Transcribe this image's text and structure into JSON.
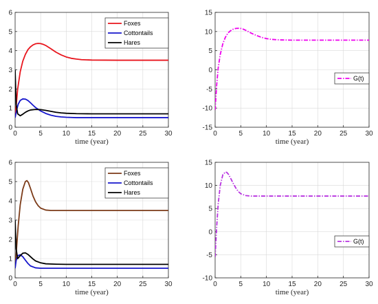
{
  "chart_data": [
    {
      "type": "line",
      "xlabel": "time (year)",
      "ylabel": "",
      "xlim": [
        0,
        30
      ],
      "ylim": [
        0,
        6
      ],
      "xticks": [
        0,
        5,
        10,
        15,
        20,
        25,
        30
      ],
      "yticks": [
        0,
        1,
        2,
        3,
        4,
        5,
        6
      ],
      "grid": true,
      "legend_position": "top-right",
      "series": [
        {
          "name": "Foxes",
          "color": "#e8141c",
          "dash": "solid",
          "x": [
            0,
            0.5,
            1,
            1.5,
            2,
            2.5,
            3,
            3.5,
            4,
            4.5,
            5,
            5.5,
            6,
            7,
            8,
            9,
            10,
            11,
            12,
            13,
            15,
            20,
            25,
            30
          ],
          "y": [
            0.5,
            2.0,
            2.9,
            3.45,
            3.8,
            4.05,
            4.2,
            4.3,
            4.36,
            4.38,
            4.37,
            4.33,
            4.27,
            4.1,
            3.92,
            3.78,
            3.67,
            3.6,
            3.56,
            3.53,
            3.51,
            3.5,
            3.5,
            3.5
          ]
        },
        {
          "name": "Cottontails",
          "color": "#1515cc",
          "dash": "solid",
          "x": [
            0,
            0.3,
            0.6,
            1,
            1.5,
            2,
            2.5,
            3,
            3.5,
            4,
            5,
            6,
            7,
            8,
            9,
            10,
            12,
            15,
            20,
            25,
            30
          ],
          "y": [
            0.5,
            0.9,
            1.2,
            1.4,
            1.48,
            1.47,
            1.4,
            1.28,
            1.15,
            1.03,
            0.85,
            0.72,
            0.63,
            0.57,
            0.54,
            0.52,
            0.5,
            0.5,
            0.5,
            0.5,
            0.5
          ]
        },
        {
          "name": "Hares",
          "color": "#000000",
          "dash": "solid",
          "x": [
            0,
            0.2,
            0.5,
            1,
            1.5,
            2,
            2.5,
            3,
            4,
            5,
            6,
            7,
            8,
            9,
            10,
            12,
            15,
            20,
            25,
            30
          ],
          "y": [
            3.0,
            1.2,
            0.7,
            0.6,
            0.68,
            0.78,
            0.85,
            0.9,
            0.93,
            0.92,
            0.88,
            0.83,
            0.78,
            0.75,
            0.73,
            0.71,
            0.7,
            0.7,
            0.7,
            0.7
          ]
        }
      ]
    },
    {
      "type": "line",
      "xlabel": "time (year)",
      "ylabel": "",
      "xlim": [
        0,
        30
      ],
      "ylim": [
        -15,
        15
      ],
      "xticks": [
        0,
        5,
        10,
        15,
        20,
        25,
        30
      ],
      "yticks": [
        -15,
        -10,
        -5,
        0,
        5,
        10,
        15
      ],
      "grid": true,
      "legend_position": "center-right",
      "series": [
        {
          "name": "G(t)",
          "color": "#ee00ee",
          "dash": "dashdot",
          "x": [
            0,
            0.3,
            0.6,
            1,
            1.5,
            2,
            2.5,
            3,
            3.5,
            4,
            4.5,
            5,
            5.5,
            6,
            7,
            8,
            9,
            10,
            11,
            12,
            13,
            15,
            20,
            25,
            30
          ],
          "y": [
            -10.5,
            -4.0,
            0.5,
            4.0,
            6.8,
            8.5,
            9.6,
            10.2,
            10.6,
            10.8,
            10.85,
            10.8,
            10.6,
            10.3,
            9.6,
            9.0,
            8.5,
            8.15,
            7.95,
            7.85,
            7.8,
            7.75,
            7.75,
            7.75,
            7.75
          ]
        }
      ]
    },
    {
      "type": "line",
      "xlabel": "time (year)",
      "ylabel": "",
      "xlim": [
        0,
        30
      ],
      "ylim": [
        0,
        6
      ],
      "xticks": [
        0,
        5,
        10,
        15,
        20,
        25,
        30
      ],
      "yticks": [
        0,
        1,
        2,
        3,
        4,
        5,
        6
      ],
      "grid": true,
      "legend_position": "top-right",
      "series": [
        {
          "name": "Foxes",
          "color": "#7b3a17",
          "dash": "solid",
          "x": [
            0,
            0.3,
            0.6,
            1,
            1.5,
            2,
            2.3,
            2.6,
            3,
            3.5,
            4,
            4.5,
            5,
            6,
            7,
            8,
            10,
            15,
            20,
            25,
            30
          ],
          "y": [
            0.5,
            1.6,
            2.7,
            3.8,
            4.6,
            5.0,
            5.05,
            4.95,
            4.65,
            4.25,
            3.95,
            3.75,
            3.62,
            3.52,
            3.5,
            3.5,
            3.5,
            3.5,
            3.5,
            3.5,
            3.5
          ]
        },
        {
          "name": "Cottontails",
          "color": "#1515cc",
          "dash": "solid",
          "x": [
            0,
            0.2,
            0.5,
            1,
            1.5,
            2,
            2.5,
            3,
            4,
            5,
            6,
            8,
            10,
            15,
            20,
            25,
            30
          ],
          "y": [
            0.5,
            0.9,
            1.15,
            1.2,
            1.1,
            0.92,
            0.75,
            0.62,
            0.52,
            0.5,
            0.5,
            0.5,
            0.5,
            0.5,
            0.5,
            0.5,
            0.5
          ]
        },
        {
          "name": "Hares",
          "color": "#000000",
          "dash": "solid",
          "x": [
            0,
            0.2,
            0.5,
            1,
            1.5,
            2,
            2.5,
            3,
            3.5,
            4,
            5,
            6,
            8,
            10,
            15,
            20,
            25,
            30
          ],
          "y": [
            3.0,
            1.5,
            1.0,
            1.15,
            1.28,
            1.3,
            1.22,
            1.1,
            0.98,
            0.88,
            0.78,
            0.73,
            0.71,
            0.7,
            0.7,
            0.7,
            0.7,
            0.7
          ]
        }
      ]
    },
    {
      "type": "line",
      "xlabel": "time (year)",
      "ylabel": "",
      "xlim": [
        0,
        30
      ],
      "ylim": [
        -10,
        15
      ],
      "xticks": [
        0,
        5,
        10,
        15,
        20,
        25,
        30
      ],
      "yticks": [
        -10,
        -5,
        0,
        5,
        10,
        15
      ],
      "grid": true,
      "legend_position": "center-right",
      "series": [
        {
          "name": "G(t)",
          "color": "#b833e0",
          "dash": "dashdot",
          "x": [
            0,
            0.3,
            0.6,
            1,
            1.5,
            2,
            2.3,
            2.6,
            3,
            3.5,
            4,
            4.5,
            5,
            6,
            7,
            8,
            10,
            15,
            20,
            25,
            30
          ],
          "y": [
            -5.5,
            1.0,
            6.0,
            10.0,
            12.3,
            12.9,
            12.8,
            12.4,
            11.6,
            10.5,
            9.5,
            8.7,
            8.2,
            7.8,
            7.7,
            7.7,
            7.7,
            7.7,
            7.7,
            7.7,
            7.7
          ]
        }
      ]
    }
  ]
}
